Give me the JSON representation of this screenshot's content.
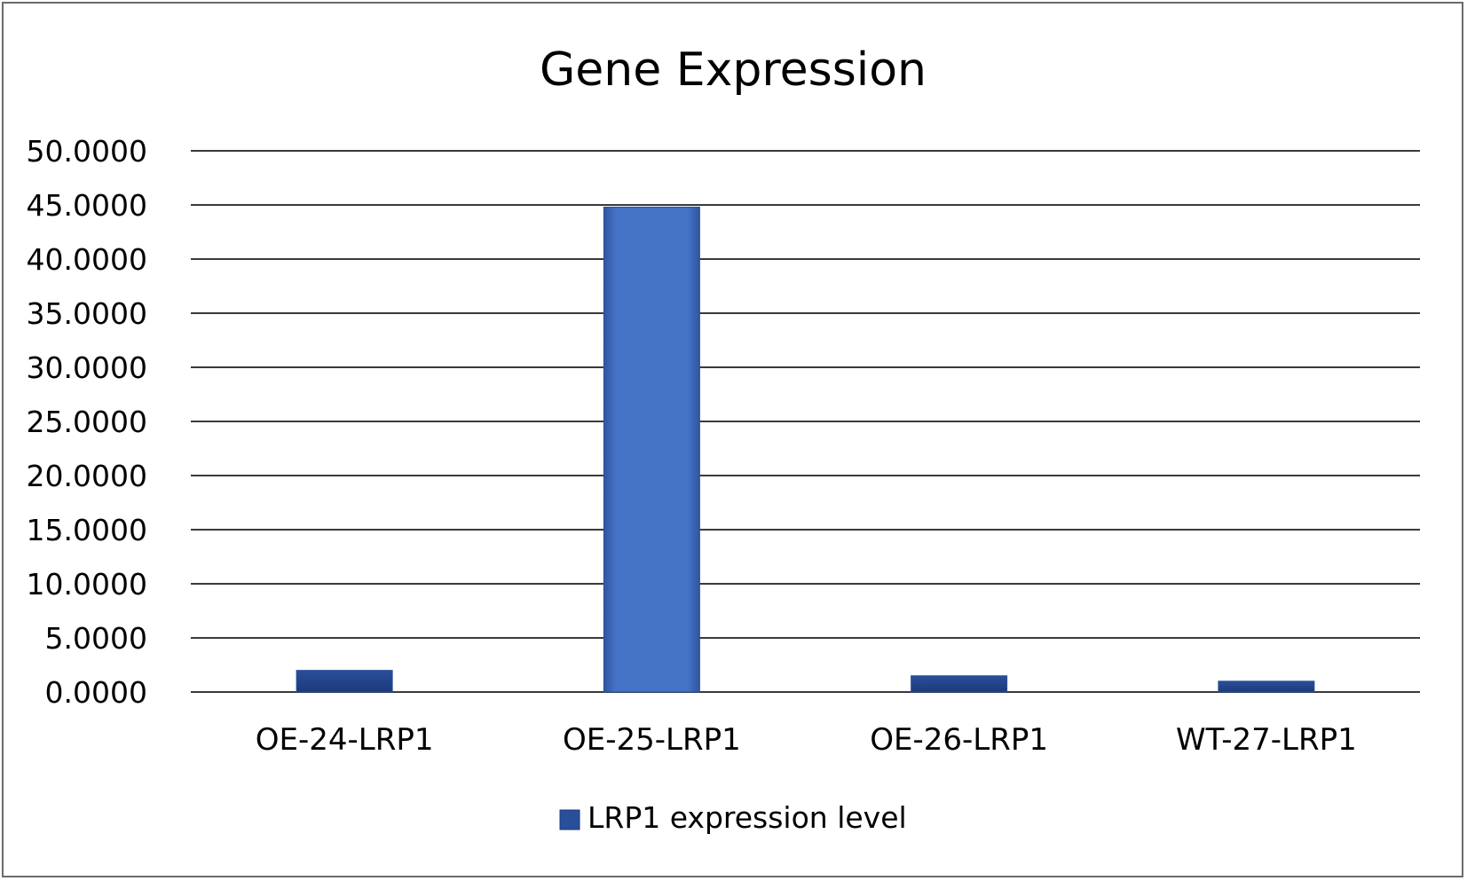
{
  "chart_data": {
    "type": "bar",
    "title": "Gene Expression",
    "xlabel": "",
    "ylabel": "",
    "categories": [
      "OE-24-LRP1",
      "OE-25-LRP1",
      "OE-26-LRP1",
      "WT-27-LRP1"
    ],
    "series": [
      {
        "name": "LRP1 expression level",
        "values": [
          2.0,
          44.8,
          1.5,
          1.0
        ],
        "color": "#4472c4"
      }
    ],
    "ylim": [
      0,
      50
    ],
    "yticks": [
      "0.0000",
      "5.0000",
      "10.0000",
      "15.0000",
      "20.0000",
      "25.0000",
      "30.0000",
      "35.0000",
      "40.0000",
      "45.0000",
      "50.0000"
    ],
    "grid": true,
    "legend_position": "bottom"
  }
}
